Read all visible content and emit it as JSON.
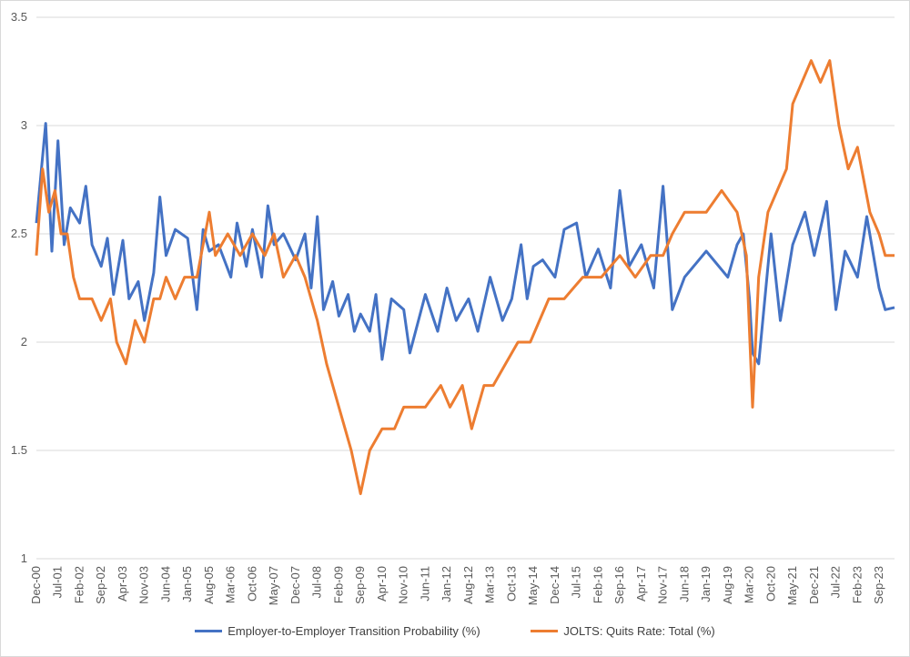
{
  "chart_data": {
    "type": "line",
    "title": "",
    "xlabel": "",
    "ylabel": "",
    "ylim": [
      1,
      3.5
    ],
    "yticks": [
      "1",
      "1.5",
      "2",
      "2.5",
      "3",
      "3.5"
    ],
    "grid": "horizontal",
    "legend_position": "bottom",
    "x_start": "Dec-00",
    "x_end": "Feb-24",
    "xtick_labels": [
      "Dec-00",
      "Jul-01",
      "Feb-02",
      "Sep-02",
      "Apr-03",
      "Nov-03",
      "Jun-04",
      "Jan-05",
      "Aug-05",
      "Mar-06",
      "Oct-06",
      "May-07",
      "Dec-07",
      "Jul-08",
      "Feb-09",
      "Sep-09",
      "Apr-10",
      "Nov-10",
      "Jun-11",
      "Jan-12",
      "Aug-12",
      "Mar-13",
      "Oct-13",
      "May-14",
      "Dec-14",
      "Jul-15",
      "Feb-16",
      "Sep-16",
      "Apr-17",
      "Nov-17",
      "Jun-18",
      "Jan-19",
      "Aug-19",
      "Mar-20",
      "Oct-20",
      "May-21",
      "Dec-21",
      "Jul-22",
      "Feb-23",
      "Sep-23"
    ],
    "series": [
      {
        "name": "Employer-to-Employer Transition Probability (%)",
        "color": "#4472C4",
        "points": [
          [
            "Dec-00",
            2.55
          ],
          [
            "Mar-01",
            3.01
          ],
          [
            "May-01",
            2.42
          ],
          [
            "Jul-01",
            2.93
          ],
          [
            "Sep-01",
            2.45
          ],
          [
            "Nov-01",
            2.62
          ],
          [
            "Feb-02",
            2.55
          ],
          [
            "Apr-02",
            2.72
          ],
          [
            "Jun-02",
            2.45
          ],
          [
            "Sep-02",
            2.35
          ],
          [
            "Nov-02",
            2.48
          ],
          [
            "Jan-03",
            2.22
          ],
          [
            "Apr-03",
            2.47
          ],
          [
            "Jun-03",
            2.2
          ],
          [
            "Sep-03",
            2.28
          ],
          [
            "Nov-03",
            2.1
          ],
          [
            "Feb-04",
            2.32
          ],
          [
            "Apr-04",
            2.67
          ],
          [
            "Jun-04",
            2.4
          ],
          [
            "Sep-04",
            2.52
          ],
          [
            "Jan-05",
            2.48
          ],
          [
            "Apr-05",
            2.15
          ],
          [
            "Jun-05",
            2.52
          ],
          [
            "Aug-05",
            2.42
          ],
          [
            "Nov-05",
            2.45
          ],
          [
            "Mar-06",
            2.3
          ],
          [
            "May-06",
            2.55
          ],
          [
            "Aug-06",
            2.35
          ],
          [
            "Oct-06",
            2.52
          ],
          [
            "Jan-07",
            2.3
          ],
          [
            "Mar-07",
            2.63
          ],
          [
            "May-07",
            2.45
          ],
          [
            "Aug-07",
            2.5
          ],
          [
            "Dec-07",
            2.38
          ],
          [
            "Mar-08",
            2.5
          ],
          [
            "May-08",
            2.25
          ],
          [
            "Jul-08",
            2.58
          ],
          [
            "Sep-08",
            2.15
          ],
          [
            "Dec-08",
            2.28
          ],
          [
            "Feb-09",
            2.12
          ],
          [
            "May-09",
            2.22
          ],
          [
            "Jul-09",
            2.05
          ],
          [
            "Sep-09",
            2.13
          ],
          [
            "Dec-09",
            2.05
          ],
          [
            "Feb-10",
            2.22
          ],
          [
            "Apr-10",
            1.92
          ],
          [
            "Jul-10",
            2.2
          ],
          [
            "Nov-10",
            2.15
          ],
          [
            "Jan-11",
            1.95
          ],
          [
            "Jun-11",
            2.22
          ],
          [
            "Oct-11",
            2.05
          ],
          [
            "Jan-12",
            2.25
          ],
          [
            "Apr-12",
            2.1
          ],
          [
            "Aug-12",
            2.2
          ],
          [
            "Nov-12",
            2.05
          ],
          [
            "Mar-13",
            2.3
          ],
          [
            "Jul-13",
            2.1
          ],
          [
            "Oct-13",
            2.2
          ],
          [
            "Jan-14",
            2.45
          ],
          [
            "Mar-14",
            2.2
          ],
          [
            "May-14",
            2.35
          ],
          [
            "Aug-14",
            2.38
          ],
          [
            "Dec-14",
            2.3
          ],
          [
            "Mar-15",
            2.52
          ],
          [
            "Jul-15",
            2.55
          ],
          [
            "Oct-15",
            2.3
          ],
          [
            "Feb-16",
            2.43
          ],
          [
            "Jun-16",
            2.25
          ],
          [
            "Sep-16",
            2.7
          ],
          [
            "Dec-16",
            2.35
          ],
          [
            "Apr-17",
            2.45
          ],
          [
            "Aug-17",
            2.25
          ],
          [
            "Nov-17",
            2.72
          ],
          [
            "Feb-18",
            2.15
          ],
          [
            "Jun-18",
            2.3
          ],
          [
            "Jan-19",
            2.42
          ],
          [
            "Aug-19",
            2.3
          ],
          [
            "Nov-19",
            2.45
          ],
          [
            "Jan-20",
            2.5
          ],
          [
            "Mar-20",
            2.2
          ],
          [
            "Apr-20",
            1.95
          ],
          [
            "Jun-20",
            1.9
          ],
          [
            "Oct-20",
            2.5
          ],
          [
            "Jan-21",
            2.1
          ],
          [
            "May-21",
            2.45
          ],
          [
            "Sep-21",
            2.6
          ],
          [
            "Dec-21",
            2.4
          ],
          [
            "Apr-22",
            2.65
          ],
          [
            "Jul-22",
            2.15
          ],
          [
            "Oct-22",
            2.42
          ],
          [
            "Feb-23",
            2.3
          ],
          [
            "May-23",
            2.58
          ],
          [
            "Sep-23",
            2.25
          ],
          [
            "Nov-23",
            2.15
          ],
          [
            "Feb-24",
            2.16
          ]
        ]
      },
      {
        "name": "JOLTS: Quits Rate: Total (%)",
        "color": "#ED7D31",
        "points": [
          [
            "Dec-00",
            2.4
          ],
          [
            "Feb-01",
            2.8
          ],
          [
            "Apr-01",
            2.6
          ],
          [
            "Jun-01",
            2.7
          ],
          [
            "Aug-01",
            2.5
          ],
          [
            "Oct-01",
            2.5
          ],
          [
            "Dec-01",
            2.3
          ],
          [
            "Feb-02",
            2.2
          ],
          [
            "Apr-02",
            2.2
          ],
          [
            "Jun-02",
            2.2
          ],
          [
            "Sep-02",
            2.1
          ],
          [
            "Dec-02",
            2.2
          ],
          [
            "Feb-03",
            2.0
          ],
          [
            "May-03",
            1.9
          ],
          [
            "Aug-03",
            2.1
          ],
          [
            "Nov-03",
            2.0
          ],
          [
            "Feb-04",
            2.2
          ],
          [
            "Apr-04",
            2.2
          ],
          [
            "Jun-04",
            2.3
          ],
          [
            "Sep-04",
            2.2
          ],
          [
            "Dec-04",
            2.3
          ],
          [
            "Apr-05",
            2.3
          ],
          [
            "Aug-05",
            2.6
          ],
          [
            "Oct-05",
            2.4
          ],
          [
            "Feb-06",
            2.5
          ],
          [
            "Jun-06",
            2.4
          ],
          [
            "Oct-06",
            2.5
          ],
          [
            "Feb-07",
            2.4
          ],
          [
            "May-07",
            2.5
          ],
          [
            "Aug-07",
            2.3
          ],
          [
            "Dec-07",
            2.4
          ],
          [
            "Mar-08",
            2.3
          ],
          [
            "Jul-08",
            2.1
          ],
          [
            "Oct-08",
            1.9
          ],
          [
            "Feb-09",
            1.7
          ],
          [
            "Jun-09",
            1.5
          ],
          [
            "Sep-09",
            1.3
          ],
          [
            "Dec-09",
            1.5
          ],
          [
            "Apr-10",
            1.6
          ],
          [
            "Aug-10",
            1.6
          ],
          [
            "Nov-10",
            1.7
          ],
          [
            "Mar-11",
            1.7
          ],
          [
            "Jun-11",
            1.7
          ],
          [
            "Nov-11",
            1.8
          ],
          [
            "Feb-12",
            1.7
          ],
          [
            "Jun-12",
            1.8
          ],
          [
            "Sep-12",
            1.6
          ],
          [
            "Jan-13",
            1.8
          ],
          [
            "Apr-13",
            1.8
          ],
          [
            "Aug-13",
            1.9
          ],
          [
            "Dec-13",
            2.0
          ],
          [
            "Apr-14",
            2.0
          ],
          [
            "Oct-14",
            2.2
          ],
          [
            "Mar-15",
            2.2
          ],
          [
            "Sep-15",
            2.3
          ],
          [
            "Mar-16",
            2.3
          ],
          [
            "Sep-16",
            2.4
          ],
          [
            "Feb-17",
            2.3
          ],
          [
            "Jul-17",
            2.4
          ],
          [
            "Nov-17",
            2.4
          ],
          [
            "Feb-18",
            2.5
          ],
          [
            "Jun-18",
            2.6
          ],
          [
            "Jan-19",
            2.6
          ],
          [
            "Jun-19",
            2.7
          ],
          [
            "Nov-19",
            2.6
          ],
          [
            "Feb-20",
            2.4
          ],
          [
            "Apr-20",
            1.7
          ],
          [
            "Jun-20",
            2.3
          ],
          [
            "Sep-20",
            2.6
          ],
          [
            "Dec-20",
            2.7
          ],
          [
            "Mar-21",
            2.8
          ],
          [
            "May-21",
            3.1
          ],
          [
            "Aug-21",
            3.2
          ],
          [
            "Nov-21",
            3.3
          ],
          [
            "Feb-22",
            3.2
          ],
          [
            "May-22",
            3.3
          ],
          [
            "Aug-22",
            3.0
          ],
          [
            "Nov-22",
            2.8
          ],
          [
            "Feb-23",
            2.9
          ],
          [
            "Jun-23",
            2.6
          ],
          [
            "Sep-23",
            2.5
          ],
          [
            "Nov-23",
            2.4
          ],
          [
            "Feb-24",
            2.4
          ]
        ]
      }
    ]
  }
}
